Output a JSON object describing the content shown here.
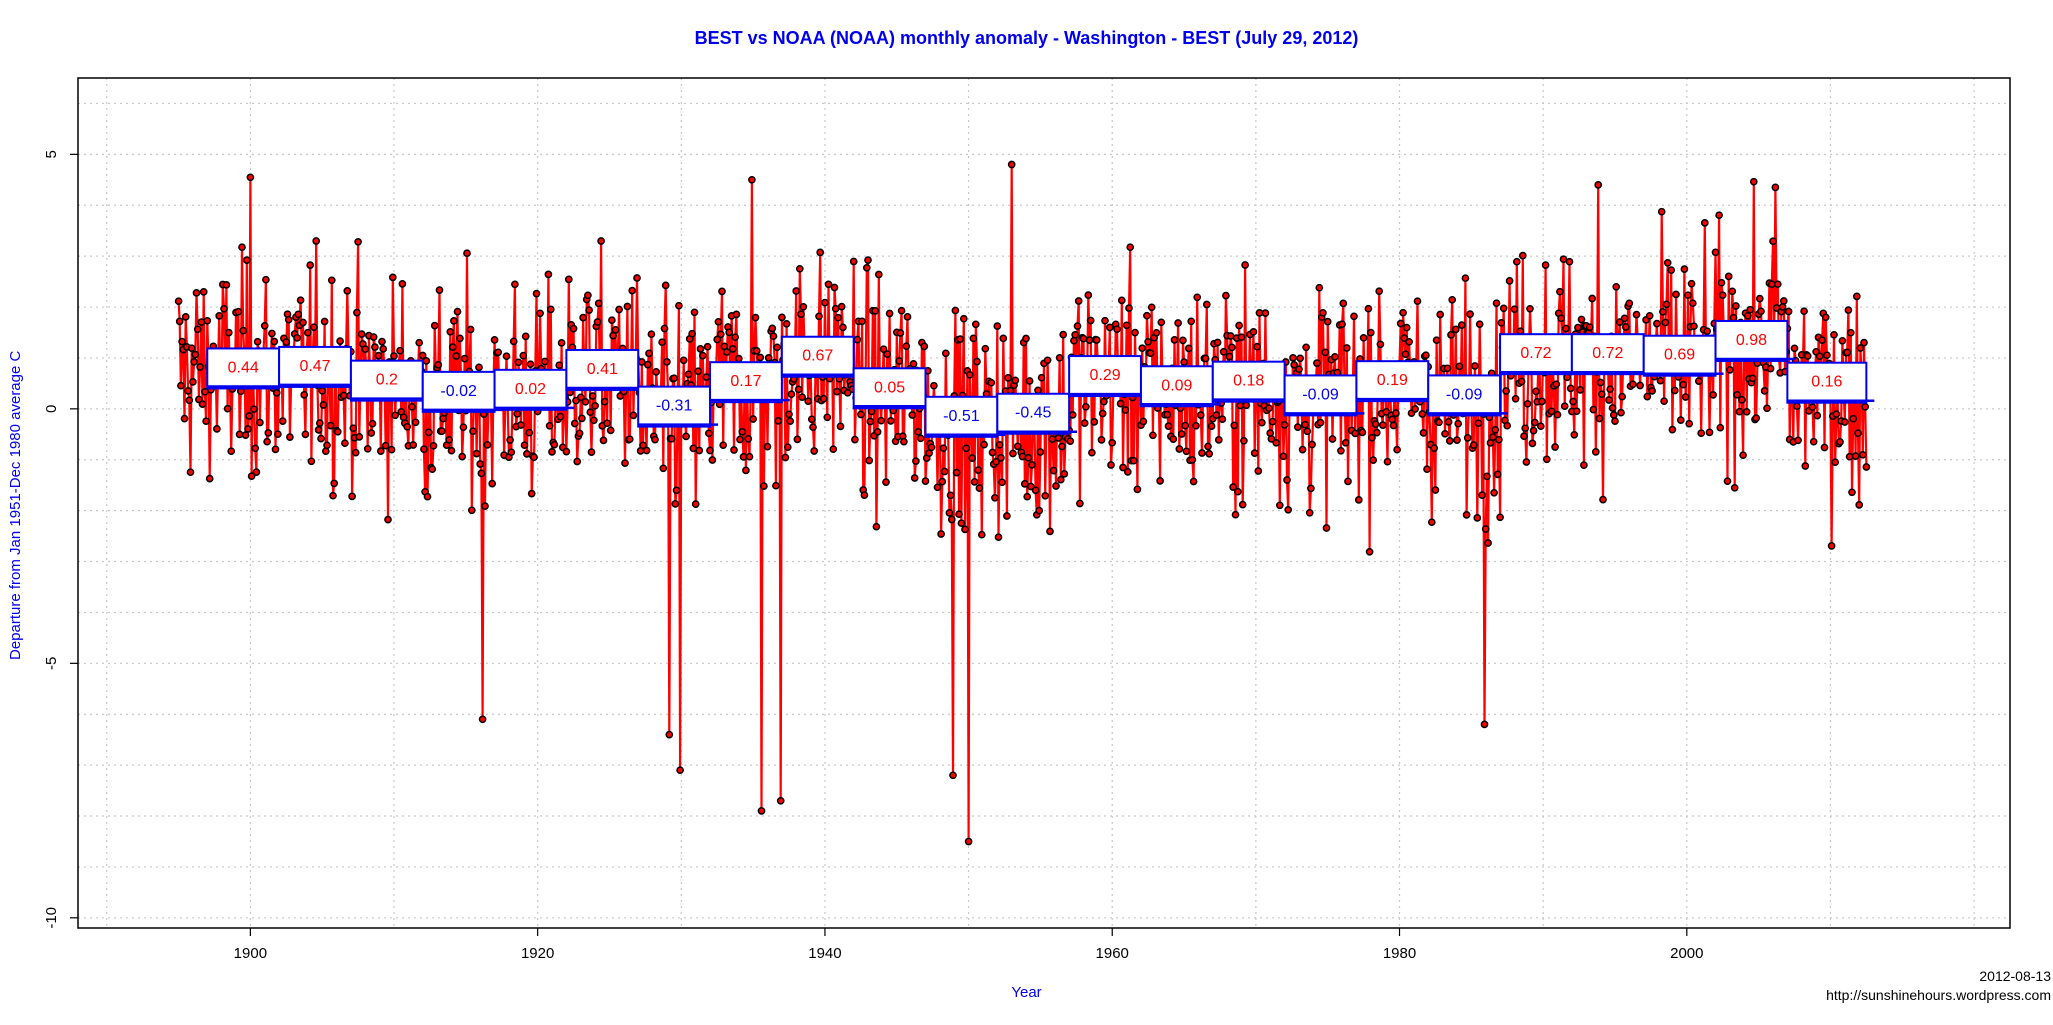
{
  "chart_data": {
    "type": "line",
    "title": "BEST vs NOAA (NOAA) monthly anomaly - Washington - BEST (July 29, 2012)",
    "xlabel": "Year",
    "ylabel": "Departure from Jan 1951-Dec 1980 average C",
    "xlim": [
      1888,
      2022.5
    ],
    "ylim": [
      -10.2,
      6.5
    ],
    "x_ticks": [
      1900,
      1920,
      1940,
      1960,
      1980,
      2000
    ],
    "y_ticks": [
      -10,
      -5,
      0,
      5
    ],
    "grid": true,
    "series_color": "#ff0000",
    "point_color": "#000000",
    "monthly_series": {
      "start_year": 1895,
      "end_year": 2012.5,
      "notable_extremes": [
        {
          "x": 1900.0,
          "y": 4.55
        },
        {
          "x": 1916.2,
          "y": -6.1
        },
        {
          "x": 1929.2,
          "y": -6.4
        },
        {
          "x": 1929.9,
          "y": -7.1
        },
        {
          "x": 1935.6,
          "y": -7.9
        },
        {
          "x": 1936.9,
          "y": -7.7
        },
        {
          "x": 1934.9,
          "y": 4.5
        },
        {
          "x": 1948.9,
          "y": -7.2
        },
        {
          "x": 1950.0,
          "y": -8.5
        },
        {
          "x": 1953.0,
          "y": 4.8
        },
        {
          "x": 1985.9,
          "y": -6.2
        },
        {
          "x": 1993.8,
          "y": 4.4
        },
        {
          "x": 2006.2,
          "y": 4.35
        }
      ]
    },
    "decadal_means": [
      {
        "start": 1897,
        "end": 1902,
        "value": 0.44
      },
      {
        "start": 1902,
        "end": 1907,
        "value": 0.47
      },
      {
        "start": 1907,
        "end": 1912,
        "value": 0.2
      },
      {
        "start": 1912,
        "end": 1917,
        "value": -0.02
      },
      {
        "start": 1917,
        "end": 1922,
        "value": 0.02
      },
      {
        "start": 1922,
        "end": 1927,
        "value": 0.41
      },
      {
        "start": 1927,
        "end": 1932,
        "value": -0.31
      },
      {
        "start": 1932,
        "end": 1937,
        "value": 0.17
      },
      {
        "start": 1937,
        "end": 1942,
        "value": 0.67
      },
      {
        "start": 1942,
        "end": 1947,
        "value": 0.05
      },
      {
        "start": 1947,
        "end": 1952,
        "value": -0.51
      },
      {
        "start": 1952,
        "end": 1957,
        "value": -0.45
      },
      {
        "start": 1957,
        "end": 1962,
        "value": 0.29
      },
      {
        "start": 1962,
        "end": 1967,
        "value": 0.09
      },
      {
        "start": 1967,
        "end": 1972,
        "value": 0.18
      },
      {
        "start": 1972,
        "end": 1977,
        "value": -0.09
      },
      {
        "start": 1977,
        "end": 1982,
        "value": 0.19
      },
      {
        "start": 1982,
        "end": 1987,
        "value": -0.09
      },
      {
        "start": 1987,
        "end": 1992,
        "value": 0.72
      },
      {
        "start": 1992,
        "end": 1997,
        "value": 0.72
      },
      {
        "start": 1997,
        "end": 2002,
        "value": 0.69
      },
      {
        "start": 2002,
        "end": 2007,
        "value": 0.98
      },
      {
        "start": 2007,
        "end": 2012.5,
        "value": 0.16
      }
    ],
    "label_colors": {
      "positive": "#ff0000",
      "negative": "#0000ee",
      "box_border": "#0000ee"
    }
  },
  "footer": {
    "date": "2012-08-13",
    "url": "http://sunshinehours.wordpress.com"
  }
}
